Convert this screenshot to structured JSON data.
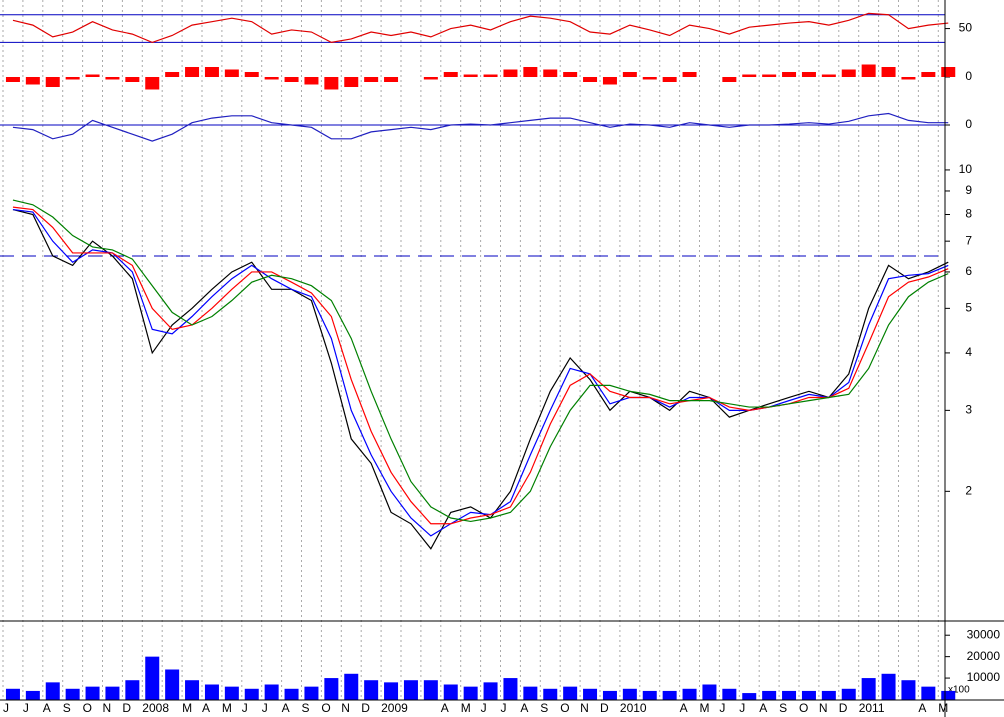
{
  "chart_data": [
    {
      "type": "line",
      "ylim": [
        19,
        87
      ],
      "yticks": [
        50
      ],
      "hlines": [
        30,
        70
      ],
      "series": [
        {
          "color": "#e00000",
          "values": [
            62,
            55,
            38,
            45,
            60,
            48,
            42,
            30,
            40,
            55,
            60,
            65,
            60,
            42,
            48,
            45,
            30,
            35,
            45,
            40,
            45,
            38,
            50,
            55,
            48,
            60,
            68,
            65,
            60,
            45,
            42,
            55,
            48,
            40,
            55,
            50,
            42,
            52,
            55,
            58,
            60,
            55,
            62,
            72,
            70,
            50,
            55,
            58
          ]
        }
      ]
    },
    {
      "type": "bar",
      "ylim": [
        -0.5,
        0.5
      ],
      "yticks": [
        0
      ],
      "color": "#ff0000",
      "values": [
        -0.1,
        -0.15,
        -0.2,
        -0.05,
        0.05,
        -0.05,
        -0.1,
        -0.25,
        0.1,
        0.2,
        0.2,
        0.15,
        0.1,
        -0.05,
        -0.1,
        -0.15,
        -0.25,
        -0.2,
        -0.1,
        -0.1,
        0,
        -0.05,
        0.1,
        0.05,
        0.05,
        0.15,
        0.2,
        0.15,
        0.1,
        -0.1,
        -0.15,
        0.1,
        -0.05,
        -0.1,
        0.1,
        0,
        -0.1,
        0.05,
        0.05,
        0.1,
        0.1,
        0.05,
        0.15,
        0.25,
        0.2,
        -0.05,
        0.1,
        0.2
      ]
    },
    {
      "type": "line",
      "ylim": [
        -0.5,
        0.5
      ],
      "yticks": [
        0
      ],
      "hlines": [
        0
      ],
      "series": [
        {
          "color": "#2020c0",
          "values": [
            -0.05,
            -0.1,
            -0.3,
            -0.2,
            0.1,
            -0.05,
            -0.2,
            -0.35,
            -0.2,
            0.05,
            0.15,
            0.2,
            0.2,
            0.05,
            0,
            -0.05,
            -0.3,
            -0.3,
            -0.15,
            -0.1,
            -0.05,
            -0.1,
            0,
            0.02,
            0,
            0.05,
            0.1,
            0.15,
            0.15,
            0.05,
            -0.05,
            0.02,
            0,
            -0.05,
            0.05,
            0,
            -0.05,
            0,
            0,
            0.02,
            0.05,
            0.02,
            0.08,
            0.2,
            0.25,
            0.1,
            0.05,
            0.05
          ]
        }
      ]
    },
    {
      "type": "line",
      "log_scale": true,
      "ylim": [
        1.05,
        11.05
      ],
      "yticks": [
        2,
        3,
        4,
        5,
        6,
        7,
        8,
        9,
        10
      ],
      "reference_line": 6.5,
      "series": [
        {
          "color": "#000000",
          "values": [
            8.2,
            8.0,
            6.5,
            6.2,
            7.0,
            6.5,
            5.8,
            4.0,
            4.6,
            5.0,
            5.5,
            6.0,
            6.3,
            5.5,
            5.5,
            5.2,
            3.8,
            2.6,
            2.3,
            1.8,
            1.7,
            1.5,
            1.8,
            1.85,
            1.75,
            2.0,
            2.6,
            3.3,
            3.9,
            3.5,
            3.0,
            3.3,
            3.2,
            3.0,
            3.3,
            3.2,
            2.9,
            3.0,
            3.1,
            3.2,
            3.3,
            3.2,
            3.6,
            5.0,
            6.2,
            5.8,
            6.0,
            6.3
          ]
        },
        {
          "color": "#0000ff",
          "values": [
            8.2,
            8.1,
            7.0,
            6.3,
            6.7,
            6.6,
            6.0,
            4.5,
            4.4,
            4.8,
            5.3,
            5.8,
            6.2,
            5.8,
            5.5,
            5.3,
            4.3,
            3.0,
            2.4,
            2.0,
            1.75,
            1.6,
            1.7,
            1.8,
            1.78,
            1.9,
            2.4,
            3.0,
            3.7,
            3.6,
            3.1,
            3.2,
            3.2,
            3.05,
            3.2,
            3.2,
            3.0,
            3.0,
            3.05,
            3.15,
            3.25,
            3.2,
            3.45,
            4.6,
            5.8,
            5.9,
            5.95,
            6.2
          ]
        },
        {
          "color": "#ff0000",
          "values": [
            8.3,
            8.2,
            7.5,
            6.6,
            6.6,
            6.6,
            6.2,
            5.0,
            4.5,
            4.6,
            5.0,
            5.5,
            6.0,
            6.0,
            5.7,
            5.4,
            4.8,
            3.5,
            2.7,
            2.2,
            1.9,
            1.7,
            1.7,
            1.75,
            1.78,
            1.85,
            2.2,
            2.8,
            3.4,
            3.6,
            3.3,
            3.2,
            3.2,
            3.1,
            3.15,
            3.2,
            3.05,
            3.0,
            3.05,
            3.1,
            3.2,
            3.2,
            3.35,
            4.2,
            5.3,
            5.7,
            5.85,
            6.1
          ]
        },
        {
          "color": "#008000",
          "values": [
            8.6,
            8.4,
            7.9,
            7.2,
            6.8,
            6.7,
            6.4,
            5.6,
            4.9,
            4.6,
            4.8,
            5.2,
            5.7,
            5.9,
            5.8,
            5.6,
            5.2,
            4.3,
            3.3,
            2.6,
            2.1,
            1.85,
            1.75,
            1.72,
            1.75,
            1.8,
            2.0,
            2.5,
            3.0,
            3.4,
            3.4,
            3.3,
            3.25,
            3.15,
            3.15,
            3.15,
            3.1,
            3.05,
            3.05,
            3.1,
            3.15,
            3.2,
            3.25,
            3.7,
            4.6,
            5.3,
            5.7,
            5.95
          ]
        }
      ]
    },
    {
      "type": "bar",
      "ylim": [
        0,
        35000
      ],
      "yticks": [
        10000,
        20000,
        30000
      ],
      "y_unit_label": "x100",
      "color": "#0000ff",
      "categories": [
        "J",
        "J",
        "A",
        "S",
        "O",
        "N",
        "D",
        "2008",
        null,
        "M",
        "A",
        "M",
        "J",
        "J",
        "A",
        "S",
        "O",
        "N",
        "D",
        "2009",
        null,
        null,
        "A",
        "M",
        "J",
        "J",
        "A",
        "S",
        "O",
        "N",
        "D",
        "2010",
        null,
        null,
        "A",
        "M",
        "J",
        "J",
        "A",
        "S",
        "O",
        "N",
        "D",
        "2011",
        null,
        null,
        "A",
        "M"
      ],
      "values": [
        5000,
        4000,
        8000,
        5000,
        6000,
        6000,
        9000,
        20000,
        14000,
        9000,
        7000,
        6000,
        5000,
        7000,
        5000,
        6000,
        10000,
        12000,
        9000,
        8000,
        9000,
        9000,
        7000,
        6000,
        8000,
        10000,
        6000,
        5000,
        6000,
        5000,
        4000,
        5000,
        4000,
        4000,
        5000,
        7000,
        5000,
        3000,
        4000,
        4000,
        4000,
        4000,
        5000,
        10000,
        12000,
        9000,
        6000,
        4000
      ]
    }
  ]
}
